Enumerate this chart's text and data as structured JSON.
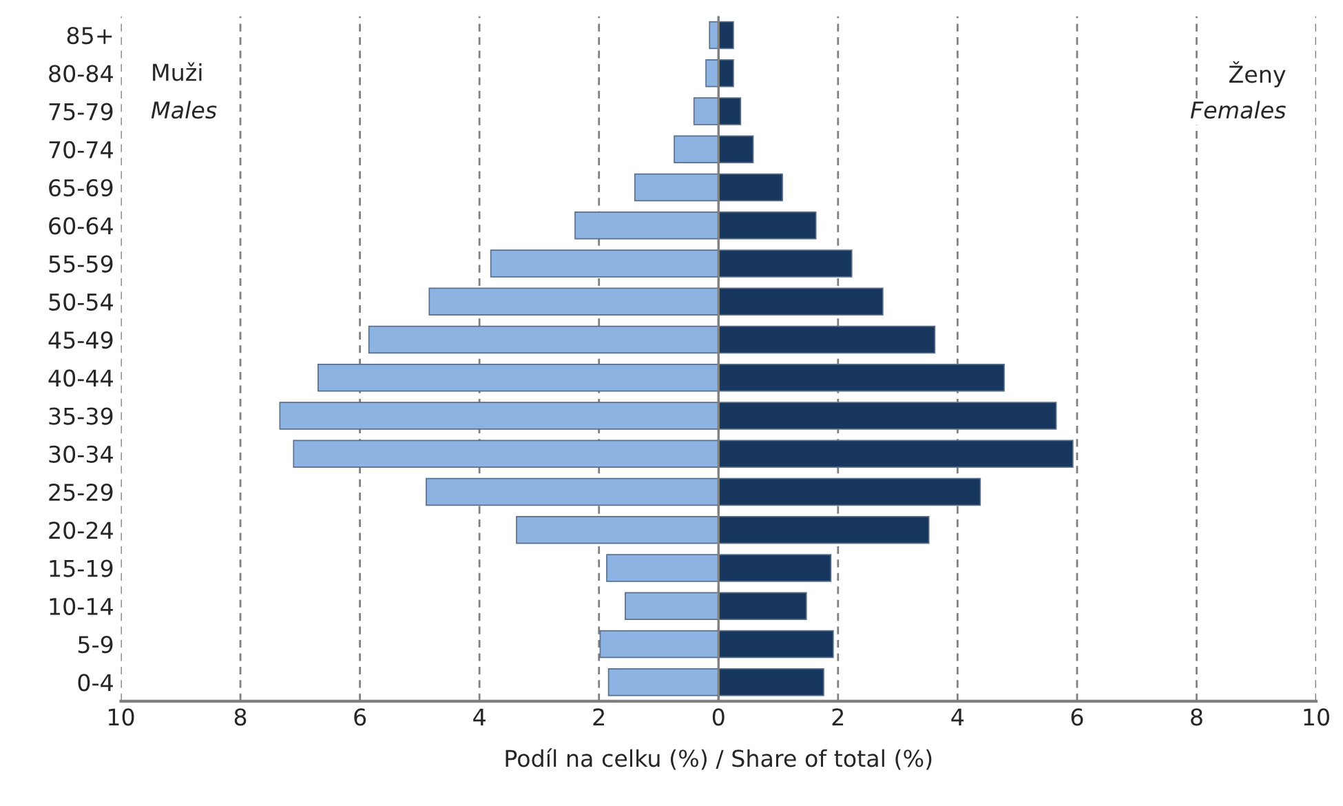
{
  "chart_data": {
    "type": "bar",
    "orientation": "horizontal",
    "stacked": true,
    "categories": [
      "85+",
      "80-84",
      "75-79",
      "70-74",
      "65-69",
      "60-64",
      "55-59",
      "50-54",
      "45-49",
      "40-44",
      "35-39",
      "30-34",
      "25-29",
      "20-24",
      "15-19",
      "10-14",
      "5-9",
      "0-4"
    ],
    "series": [
      {
        "color": "#8db3e2",
        "values": [
          -0.15,
          -0.21,
          -0.41,
          -0.74,
          -1.4,
          -2.4,
          -3.81,
          -4.84,
          -5.85,
          -6.7,
          -7.34,
          -7.11,
          -4.89,
          -3.38,
          -1.87,
          -1.56,
          -1.98,
          -1.84
        ]
      },
      {
        "color": "#17375e",
        "values": [
          0.25,
          0.25,
          0.37,
          0.58,
          1.07,
          1.63,
          2.23,
          2.75,
          3.62,
          4.78,
          5.65,
          5.93,
          4.38,
          3.52,
          1.88,
          1.47,
          1.92,
          1.76
        ]
      }
    ],
    "xlim": [
      -10,
      10
    ],
    "xticks": [
      {
        "value": -10,
        "label": "10"
      },
      {
        "value": -8,
        "label": "8"
      },
      {
        "value": -6,
        "label": "6"
      },
      {
        "value": -4,
        "label": "4"
      },
      {
        "value": -2,
        "label": "2"
      },
      0,
      2,
      4,
      6,
      8,
      10
    ],
    "xlabel": "Podíl na celku (%) / Share of total (%)",
    "grid": "x",
    "line_style": "dashed",
    "annotations": [
      "Muži",
      "Males",
      "Ženy",
      "Females"
    ]
  }
}
